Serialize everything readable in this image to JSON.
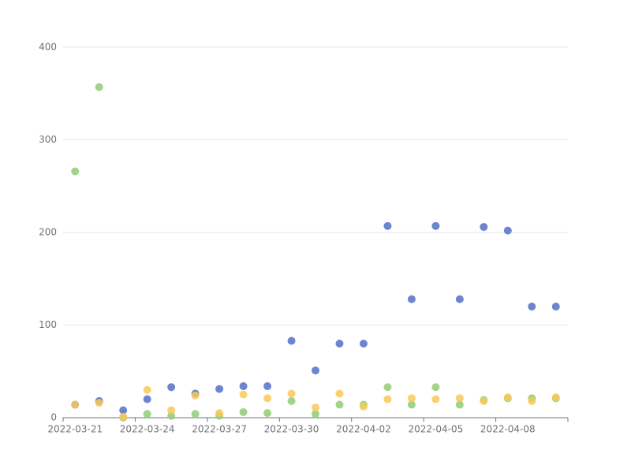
{
  "chart_data": {
    "type": "scatter",
    "categories": [
      "2022-03-21",
      null,
      null,
      "2022-03-24",
      null,
      null,
      "2022-03-27",
      null,
      null,
      "2022-03-30",
      null,
      null,
      "2022-04-02",
      null,
      null,
      "2022-04-05",
      null,
      null,
      "2022-04-08",
      null,
      null
    ],
    "series": [
      {
        "color": "#5470c6",
        "values": [
          14,
          18,
          8,
          20,
          33,
          26,
          31,
          34,
          34,
          83,
          51,
          80,
          80,
          207,
          128,
          207,
          128,
          206,
          202,
          120,
          120
        ]
      },
      {
        "color": "#91cc75",
        "values": [
          266,
          357,
          0,
          4,
          2,
          4,
          2,
          6,
          5,
          18,
          4,
          14,
          14,
          33,
          14,
          33,
          14,
          19,
          21,
          21,
          21
        ]
      },
      {
        "color": "#fac858",
        "values": [
          14,
          16,
          1,
          30,
          8,
          24,
          5,
          25,
          21,
          26,
          11,
          26,
          12,
          20,
          21,
          20,
          21,
          18,
          22,
          18,
          22
        ]
      }
    ],
    "ylim": [
      0,
      400
    ],
    "yticks": [
      0,
      100,
      200,
      300,
      400
    ],
    "grid": true
  }
}
